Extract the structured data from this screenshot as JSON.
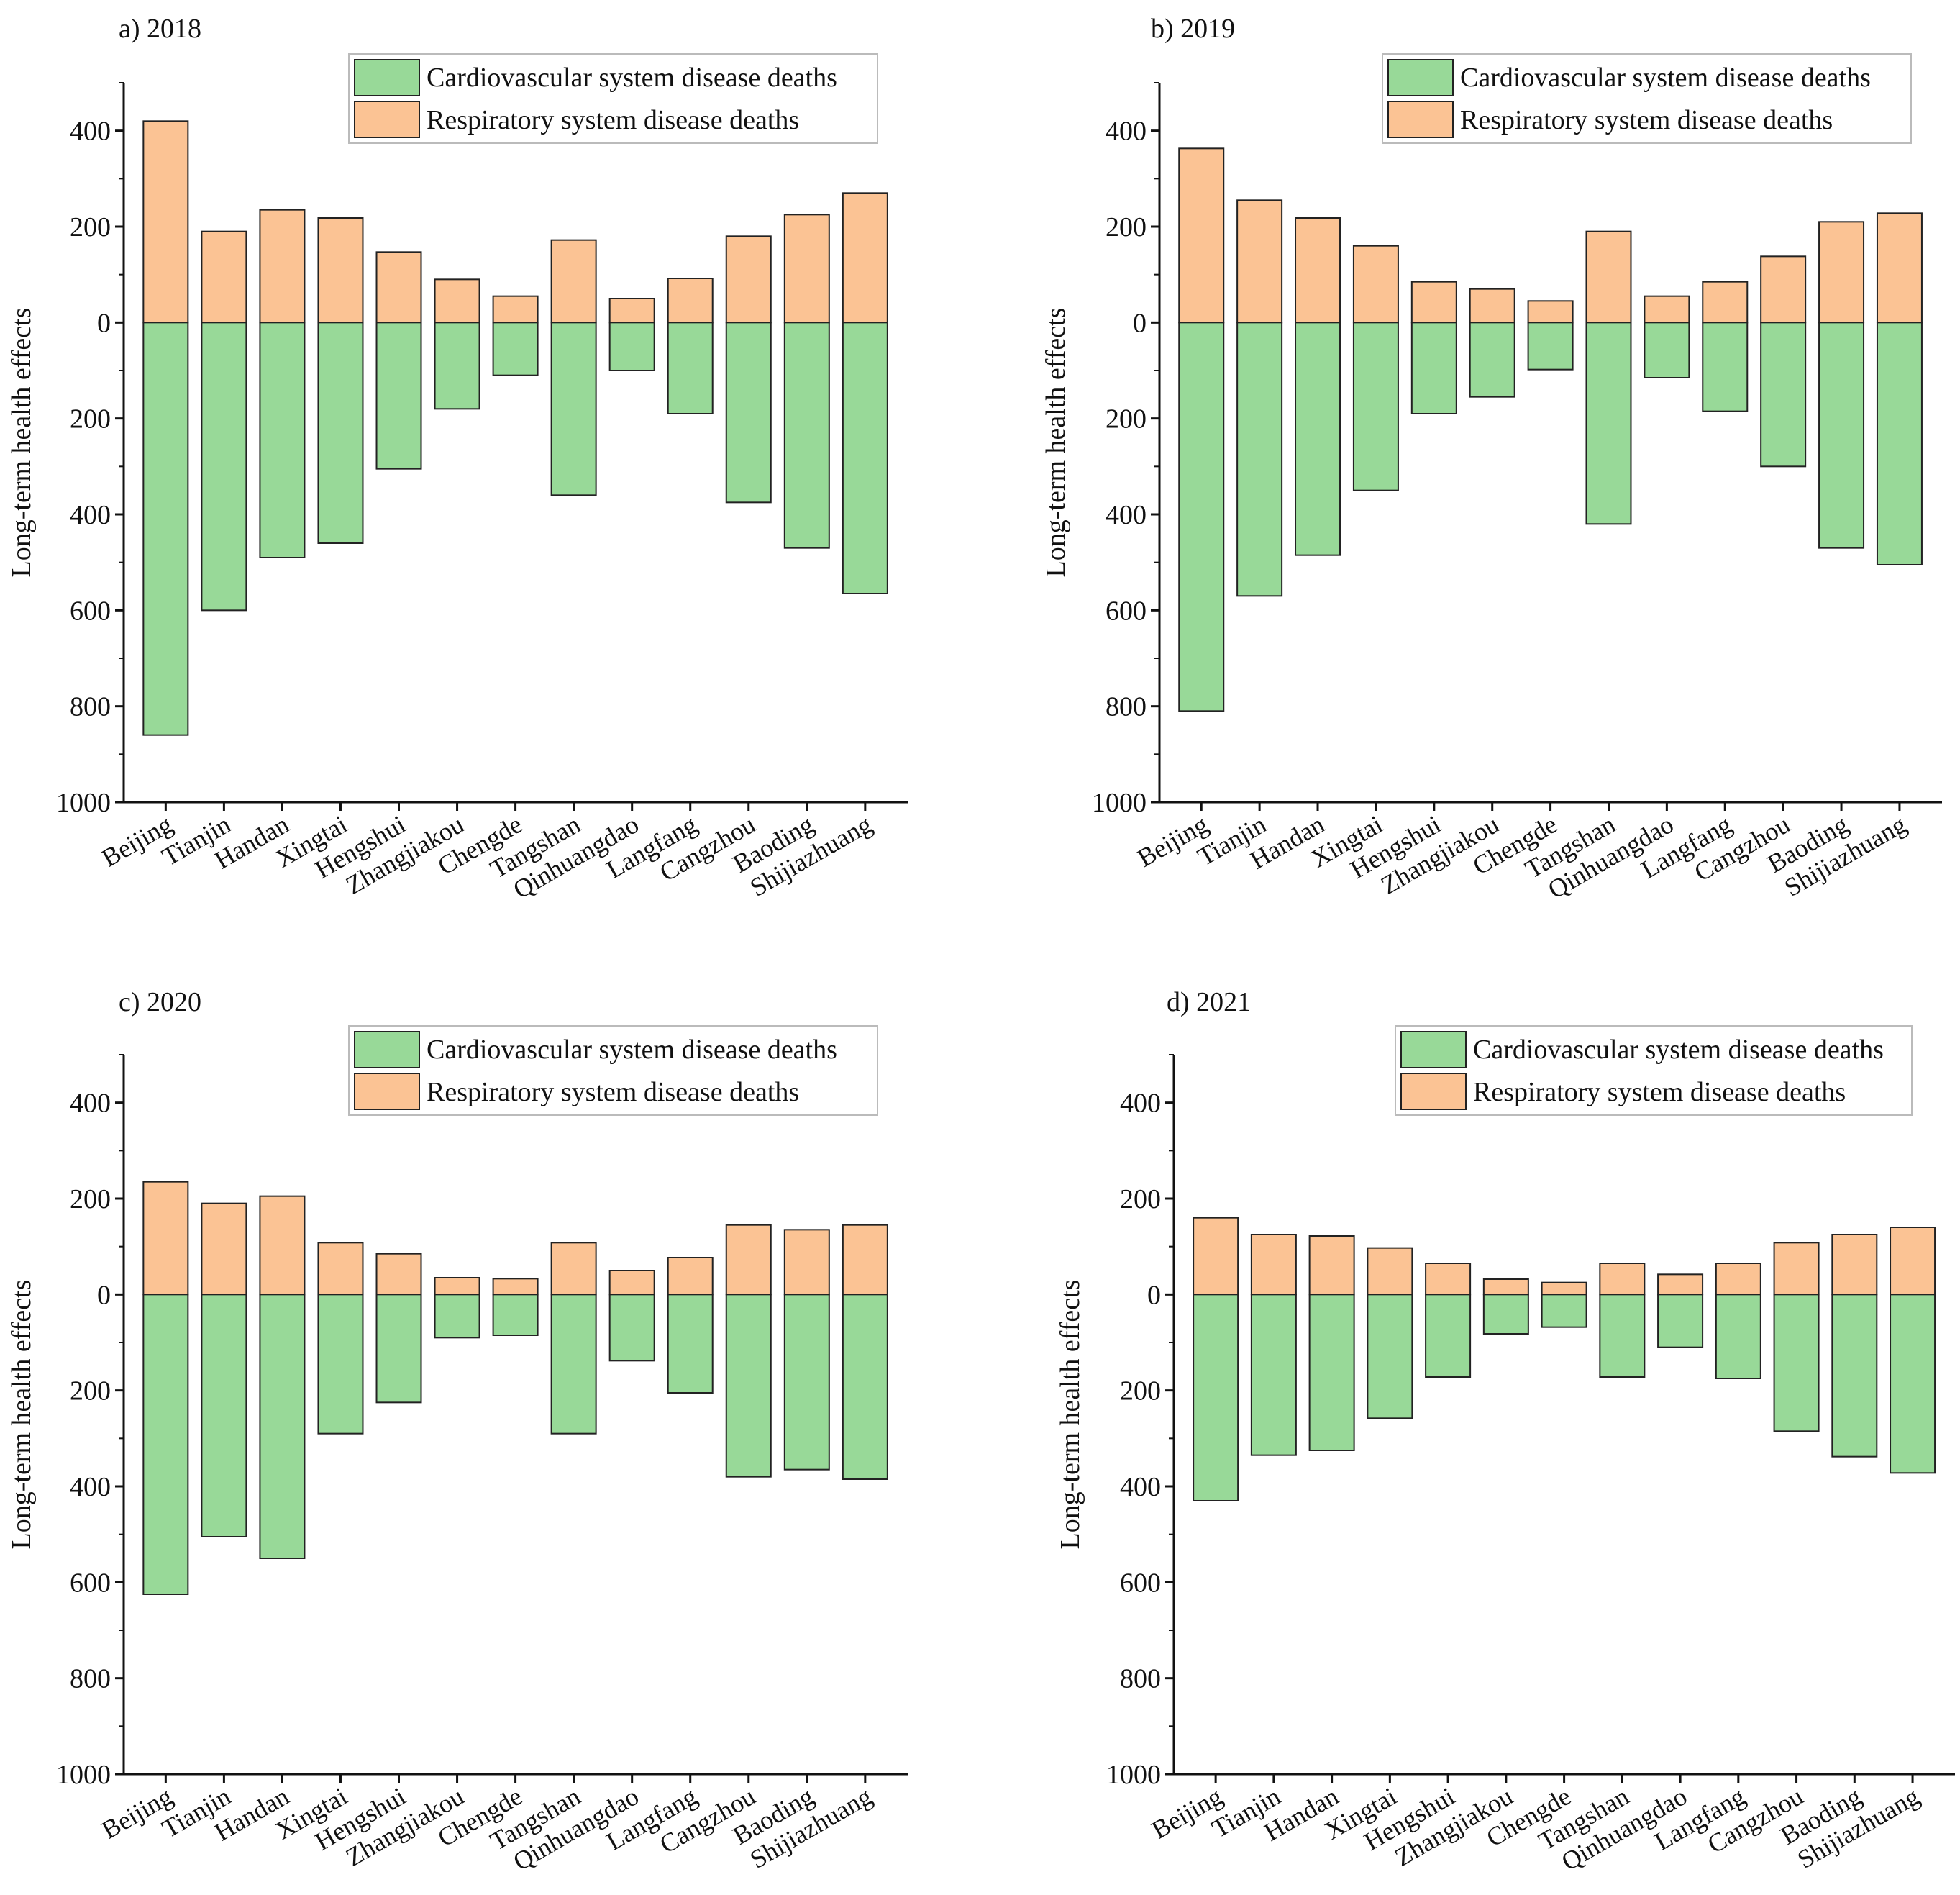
{
  "legend": {
    "cardio": "Cardiovascular system disease deaths",
    "resp": "Respiratory system disease deaths"
  },
  "colors": {
    "cardio": "#98d998",
    "resp": "#fbc394",
    "edge": "#222222"
  },
  "chart_data": [
    {
      "type": "bar",
      "title": "a) 2018",
      "xlabel": "",
      "ylabel": "Long-term health effects",
      "ylim": [
        -1000,
        500
      ],
      "yticks": [
        -1000,
        -800,
        -600,
        -400,
        -200,
        0,
        200,
        400
      ],
      "yticklabels": [
        "1000",
        "800",
        "600",
        "400",
        "200",
        "0",
        "200",
        "400"
      ],
      "categories": [
        "Beijing",
        "Tianjin",
        "Handan",
        "Xingtai",
        "Hengshui",
        "Zhangjiakou",
        "Chengde",
        "Tangshan",
        "Qinhuangdao",
        "Langfang",
        "Cangzhou",
        "Baoding",
        "Shijiazhuang"
      ],
      "series": [
        {
          "name": "Respiratory system disease deaths",
          "values": [
            420,
            190,
            235,
            218,
            147,
            90,
            55,
            172,
            50,
            92,
            180,
            225,
            270
          ]
        },
        {
          "name": "Cardiovascular system disease deaths",
          "values": [
            -860,
            -600,
            -490,
            -460,
            -305,
            -180,
            -110,
            -360,
            -100,
            -190,
            -375,
            -470,
            -565
          ]
        }
      ]
    },
    {
      "type": "bar",
      "title": "b) 2019",
      "xlabel": "",
      "ylabel": "Long-term health effects",
      "ylim": [
        -1000,
        500
      ],
      "yticks": [
        -1000,
        -800,
        -600,
        -400,
        -200,
        0,
        200,
        400
      ],
      "yticklabels": [
        "1000",
        "800",
        "600",
        "400",
        "200",
        "0",
        "200",
        "400"
      ],
      "categories": [
        "Beijing",
        "Tianjin",
        "Handan",
        "Xingtai",
        "Hengshui",
        "Zhangjiakou",
        "Chengde",
        "Tangshan",
        "Qinhuangdao",
        "Langfang",
        "Cangzhou",
        "Baoding",
        "Shijiazhuang"
      ],
      "series": [
        {
          "name": "Respiratory system disease deaths",
          "values": [
            363,
            255,
            218,
            160,
            85,
            70,
            45,
            190,
            55,
            85,
            138,
            210,
            228
          ]
        },
        {
          "name": "Cardiovascular system disease deaths",
          "values": [
            -810,
            -570,
            -485,
            -350,
            -190,
            -155,
            -98,
            -420,
            -115,
            -185,
            -300,
            -470,
            -505
          ]
        }
      ]
    },
    {
      "type": "bar",
      "title": "c) 2020",
      "xlabel": "",
      "ylabel": "Long-term health effects",
      "ylim": [
        -1000,
        500
      ],
      "yticks": [
        -1000,
        -800,
        -600,
        -400,
        -200,
        0,
        200,
        400
      ],
      "yticklabels": [
        "1000",
        "800",
        "600",
        "400",
        "200",
        "0",
        "200",
        "400"
      ],
      "categories": [
        "Beijing",
        "Tianjin",
        "Handan",
        "Xingtai",
        "Hengshui",
        "Zhangjiakou",
        "Chengde",
        "Tangshan",
        "Qinhuangdao",
        "Langfang",
        "Cangzhou",
        "Baoding",
        "Shijiazhuang"
      ],
      "series": [
        {
          "name": "Respiratory system disease deaths",
          "values": [
            235,
            190,
            205,
            108,
            85,
            35,
            33,
            108,
            50,
            77,
            145,
            135,
            145
          ]
        },
        {
          "name": "Cardiovascular system disease deaths",
          "values": [
            -625,
            -505,
            -550,
            -290,
            -225,
            -90,
            -85,
            -290,
            -138,
            -205,
            -380,
            -365,
            -385
          ]
        }
      ]
    },
    {
      "type": "bar",
      "title": "d) 2021",
      "xlabel": "",
      "ylabel": "Long-term health effects",
      "ylim": [
        -1000,
        500
      ],
      "yticks": [
        -1000,
        -800,
        -600,
        -400,
        -200,
        0,
        200,
        400
      ],
      "yticklabels": [
        "1000",
        "800",
        "600",
        "400",
        "200",
        "0",
        "200",
        "400"
      ],
      "categories": [
        "Beijing",
        "Tianjin",
        "Handan",
        "Xingtai",
        "Hengshui",
        "Zhangjiakou",
        "Chengde",
        "Tangshan",
        "Qinhuangdao",
        "Langfang",
        "Cangzhou",
        "Baoding",
        "Shijiazhuang"
      ],
      "series": [
        {
          "name": "Respiratory system disease deaths",
          "values": [
            160,
            125,
            122,
            97,
            65,
            32,
            25,
            65,
            42,
            65,
            108,
            125,
            140
          ]
        },
        {
          "name": "Cardiovascular system disease deaths",
          "values": [
            -430,
            -335,
            -325,
            -258,
            -172,
            -82,
            -68,
            -172,
            -110,
            -175,
            -285,
            -338,
            -372
          ]
        }
      ]
    }
  ]
}
